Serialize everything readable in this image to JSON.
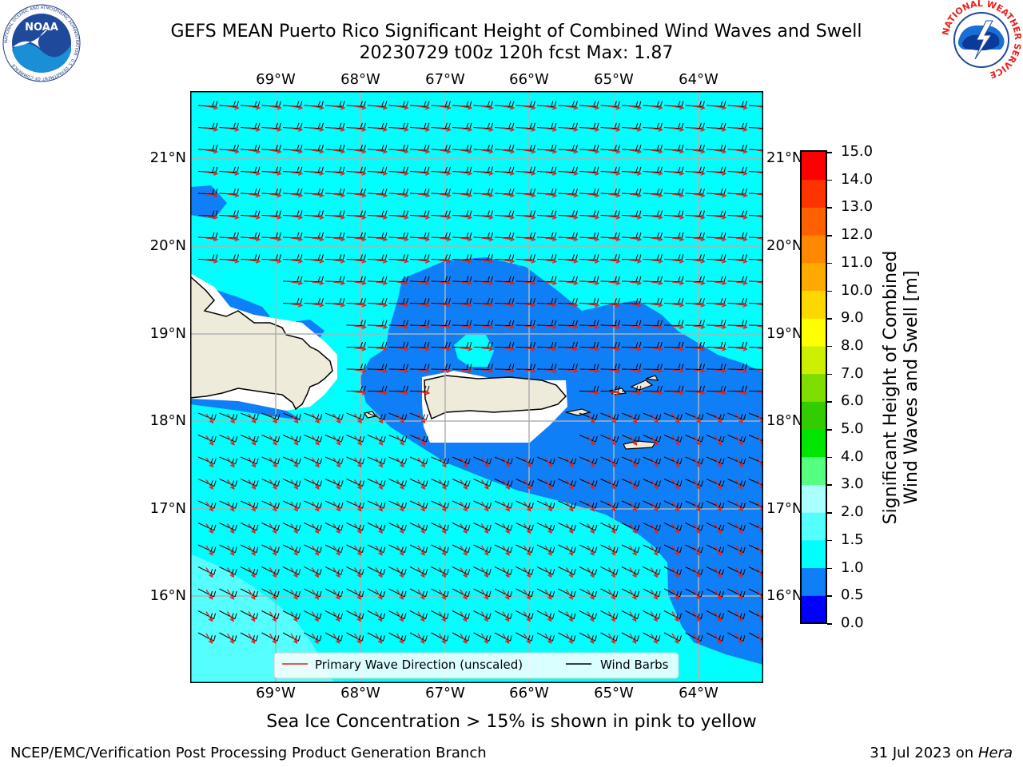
{
  "header": {
    "title_line1": "GEFS MEAN Puerto Rico Significant Height of Combined Wind Waves and Swell",
    "title_line2": "20230729 t00z 120h fcst   Max: 1.87"
  },
  "logos": {
    "noaa_text": "NOAA",
    "noaa_ring_text": "NATIONAL OCEANIC AND ATMOSPHERIC ADMINISTRATION · U.S. DEPARTMENT OF COMMERCE",
    "nws_ring_text": "NATIONAL WEATHER SERVICE"
  },
  "map": {
    "lon_labels": [
      "69°W",
      "68°W",
      "67°W",
      "66°W",
      "65°W",
      "64°W"
    ],
    "lat_labels": [
      "21°N",
      "20°N",
      "19°N",
      "18°N",
      "17°N",
      "16°N"
    ],
    "legend": {
      "wave_direction": "Primary Wave Direction (unscaled)",
      "wind_barbs": "Wind Barbs"
    }
  },
  "colorbar": {
    "label_line1": "Significant Height of Combined",
    "label_line2": "Wind Waves and Swell [m]",
    "ticks": [
      "0.0",
      "0.5",
      "1.0",
      "1.5",
      "2.0",
      "3.0",
      "4.0",
      "5.0",
      "6.0",
      "7.0",
      "8.0",
      "9.0",
      "10.0",
      "11.0",
      "12.0",
      "13.0",
      "14.0",
      "15.0"
    ],
    "colors": [
      "#0000ff",
      "#0f7ff8",
      "#00ffff",
      "#55ffff",
      "#aaffff",
      "#55ff80",
      "#00e600",
      "#33cc00",
      "#80dd00",
      "#ccf000",
      "#ffff00",
      "#ffd700",
      "#ffaa00",
      "#ff8800",
      "#ff6000",
      "#ff3300",
      "#ff0000"
    ]
  },
  "note": "Sea Ice Concentration > 15% is shown in pink to yellow",
  "footer": {
    "left": "NCEP/EMC/Verification Post Processing Product Generation Branch",
    "date": "31 Jul 2023 on ",
    "host": "Hera"
  }
}
